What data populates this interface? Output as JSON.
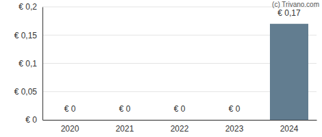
{
  "chart_data": {
    "type": "bar",
    "categories": [
      "2020",
      "2021",
      "2022",
      "2023",
      "2024"
    ],
    "values": [
      0,
      0,
      0,
      0,
      0.17
    ],
    "value_labels": [
      "€ 0",
      "€ 0",
      "€ 0",
      "€ 0",
      "€ 0,17"
    ],
    "color": "#627d90",
    "ylim": [
      0,
      0.2
    ],
    "yticks": [
      {
        "value": 0,
        "label": "€ 0"
      },
      {
        "value": 0.05,
        "label": "€ 0,05"
      },
      {
        "value": 0.1,
        "label": "€ 0,1"
      },
      {
        "value": 0.15,
        "label": "€ 0,15"
      },
      {
        "value": 0.2,
        "label": "€ 0,2"
      }
    ],
    "grid": true,
    "data_labels": true,
    "annotations": [
      "(c) Trivano.com"
    ]
  }
}
